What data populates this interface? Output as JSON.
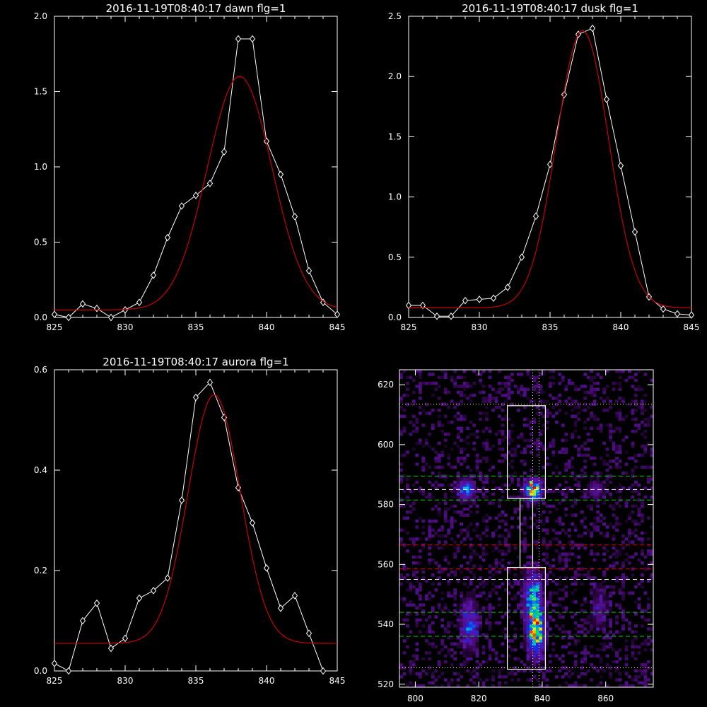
{
  "chart_data": [
    {
      "type": "line",
      "title": "2016-11-19T08:40:17 dawn flg=1",
      "xlim": [
        825,
        845
      ],
      "ylim": [
        0,
        2.0
      ],
      "xticks": [
        825,
        830,
        835,
        840,
        845
      ],
      "xtick_labels": [
        "825",
        "830",
        "835",
        "840",
        "845"
      ],
      "yticks": [
        0,
        0.5,
        1.0,
        1.5,
        2.0
      ],
      "ytick_labels": [
        "0.0",
        "0.5",
        "1.0",
        "1.5",
        "2.0"
      ],
      "series": [
        {
          "color": "#ffffff",
          "marker": "diamond",
          "x": [
            825,
            826,
            827,
            828,
            829,
            830,
            831,
            832,
            833,
            834,
            835,
            836,
            837,
            838,
            839,
            840,
            841,
            842,
            843,
            844,
            845
          ],
          "y": [
            0.02,
            0.0,
            0.09,
            0.06,
            0.0,
            0.05,
            0.1,
            0.28,
            0.53,
            0.74,
            0.81,
            0.89,
            1.1,
            1.85,
            1.85,
            1.17,
            0.95,
            0.67,
            0.31,
            0.1,
            0.02
          ]
        },
        {
          "color": "#cc0000",
          "fit": {
            "base": 0.05,
            "amp": 1.55,
            "mu": 838.1,
            "sigma": 2.3
          }
        }
      ]
    },
    {
      "type": "line",
      "title": "2016-11-19T08:40:17 dusk flg=1",
      "xlim": [
        825,
        845
      ],
      "ylim": [
        0,
        2.5
      ],
      "xticks": [
        825,
        830,
        835,
        840,
        845
      ],
      "xtick_labels": [
        "825",
        "830",
        "835",
        "840",
        "845"
      ],
      "yticks": [
        0,
        0.5,
        1.0,
        1.5,
        2.0,
        2.5
      ],
      "ytick_labels": [
        "0.0",
        "0.5",
        "1.0",
        "1.5",
        "2.0",
        "2.5"
      ],
      "series": [
        {
          "color": "#ffffff",
          "marker": "diamond",
          "x": [
            825,
            826,
            827,
            828,
            829,
            830,
            831,
            832,
            833,
            834,
            835,
            836,
            837,
            838,
            839,
            840,
            841,
            842,
            843,
            844,
            845
          ],
          "y": [
            0.1,
            0.1,
            0.01,
            0.01,
            0.14,
            0.15,
            0.16,
            0.25,
            0.5,
            0.84,
            1.27,
            1.85,
            2.35,
            2.4,
            1.81,
            1.26,
            0.71,
            0.17,
            0.07,
            0.03,
            0.02
          ]
        },
        {
          "color": "#cc0000",
          "fit": {
            "base": 0.08,
            "amp": 2.3,
            "mu": 837.3,
            "sigma": 1.85
          }
        }
      ]
    },
    {
      "type": "line",
      "title": "2016-11-19T08:40:17 aurora flg=1",
      "xlim": [
        825,
        845
      ],
      "ylim": [
        0,
        0.6
      ],
      "xticks": [
        825,
        830,
        835,
        840,
        845
      ],
      "xtick_labels": [
        "825",
        "830",
        "835",
        "840",
        "845"
      ],
      "yticks": [
        0,
        0.2,
        0.4,
        0.6
      ],
      "ytick_labels": [
        "0.0",
        "0.2",
        "0.4",
        "0.6"
      ],
      "series": [
        {
          "color": "#ffffff",
          "marker": "diamond",
          "x": [
            825,
            826,
            827,
            828,
            829,
            830,
            831,
            832,
            833,
            834,
            835,
            836,
            837,
            838,
            839,
            840,
            841,
            842,
            843,
            844
          ],
          "y": [
            0.015,
            0.0,
            0.1,
            0.135,
            0.045,
            0.065,
            0.145,
            0.16,
            0.185,
            0.34,
            0.545,
            0.575,
            0.505,
            0.365,
            0.295,
            0.205,
            0.125,
            0.15,
            0.075,
            0.0
          ]
        },
        {
          "color": "#cc0000",
          "fit": {
            "base": 0.055,
            "amp": 0.495,
            "mu": 836.3,
            "sigma": 1.85
          }
        }
      ]
    },
    {
      "type": "heatmap",
      "xlim": [
        795,
        875
      ],
      "ylim": [
        519,
        625
      ],
      "xticks": [
        800,
        820,
        840,
        860
      ],
      "xtick_labels": [
        "800",
        "820",
        "840",
        "860"
      ],
      "yticks": [
        520,
        540,
        560,
        580,
        600,
        620
      ],
      "ytick_labels": [
        "520",
        "540",
        "560",
        "580",
        "600",
        "620"
      ],
      "hotspots": [
        {
          "x": 816,
          "y": 585,
          "intensity": 0.55
        },
        {
          "x": 837,
          "y": 585,
          "intensity": 0.95
        },
        {
          "x": 838,
          "y": 538,
          "intensity": 0.95
        },
        {
          "x": 837,
          "y": 550,
          "intensity": 0.6
        },
        {
          "x": 817,
          "y": 540,
          "intensity": 0.45
        },
        {
          "x": 857,
          "y": 585,
          "intensity": 0.25
        },
        {
          "x": 858,
          "y": 545,
          "intensity": 0.2
        }
      ],
      "overlays": {
        "boxes": [
          {
            "x0": 829,
            "x1": 841,
            "y0": 582,
            "y1": 613,
            "color": "#ffffff"
          },
          {
            "x0": 829,
            "x1": 841,
            "y0": 525,
            "y1": 559,
            "color": "#ffffff"
          },
          {
            "x0": 833,
            "x1": 837,
            "y0": 559,
            "y1": 582,
            "color": "#ffffff"
          }
        ],
        "hlines": [
          {
            "y": 613.5,
            "color": "#ffff66",
            "style": "dotted"
          },
          {
            "y": 525.5,
            "color": "#ffff66",
            "style": "dotted"
          },
          {
            "y": 589.5,
            "color": "#00cc00",
            "style": "dashed"
          },
          {
            "y": 581.5,
            "color": "#00cc00",
            "style": "dashed"
          },
          {
            "y": 585.0,
            "color": "#ffffff",
            "style": "dashed"
          },
          {
            "y": 544.0,
            "color": "#00cc00",
            "style": "dashed"
          },
          {
            "y": 536.0,
            "color": "#00cc00",
            "style": "dashed"
          },
          {
            "y": 555.0,
            "color": "#ffffff",
            "style": "dashed"
          },
          {
            "y": 566.5,
            "color": "#dd0000",
            "style": "dashed"
          },
          {
            "y": 558.5,
            "color": "#dd0000",
            "style": "dashed"
          }
        ],
        "vlines": [
          {
            "x": 837,
            "color": "#ffffff",
            "style": "dotted"
          },
          {
            "x": 839,
            "color": "#ffffff",
            "style": "dotted"
          }
        ]
      }
    }
  ]
}
